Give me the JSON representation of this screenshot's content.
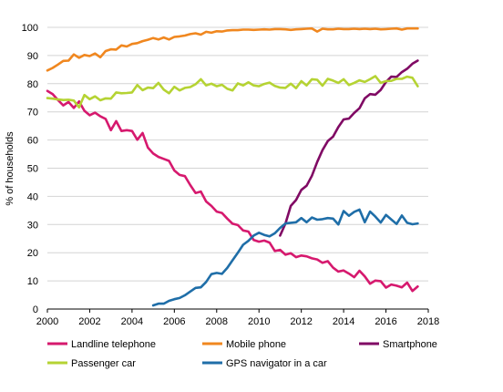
{
  "chart_data": {
    "type": "line",
    "ylabel": "% of households",
    "xlim": [
      2000,
      2018
    ],
    "ylim": [
      0,
      100
    ],
    "x_ticks": [
      "2000",
      "2002",
      "2004",
      "2006",
      "2008",
      "2010",
      "2012",
      "2014",
      "2016",
      "2018"
    ],
    "y_ticks": [
      "0",
      "10",
      "20",
      "30",
      "40",
      "50",
      "60",
      "70",
      "80",
      "90",
      "100"
    ],
    "grid": "horizontal",
    "legend_position": "bottom",
    "series": [
      {
        "name": "Landline telephone",
        "color": "#d6196e",
        "points": [
          [
            2000.0,
            77.4
          ],
          [
            2000.25,
            76.3
          ],
          [
            2000.5,
            74.2
          ],
          [
            2000.75,
            72.3
          ],
          [
            2001.0,
            73.5
          ],
          [
            2001.25,
            71.4
          ],
          [
            2001.5,
            73.7
          ],
          [
            2001.75,
            70.4
          ],
          [
            2002.0,
            68.8
          ],
          [
            2002.25,
            69.7
          ],
          [
            2002.5,
            68.4
          ],
          [
            2002.75,
            67.5
          ],
          [
            2003.0,
            63.5
          ],
          [
            2003.25,
            66.7
          ],
          [
            2003.5,
            63.2
          ],
          [
            2003.75,
            63.5
          ],
          [
            2004.0,
            63.2
          ],
          [
            2004.25,
            60.1
          ],
          [
            2004.5,
            62.5
          ],
          [
            2004.75,
            57.3
          ],
          [
            2005.0,
            55.2
          ],
          [
            2005.25,
            54.0
          ],
          [
            2005.5,
            53.3
          ],
          [
            2005.75,
            52.6
          ],
          [
            2006.0,
            49.2
          ],
          [
            2006.25,
            47.6
          ],
          [
            2006.5,
            47.2
          ],
          [
            2006.75,
            44.0
          ],
          [
            2007.0,
            41.2
          ],
          [
            2007.25,
            41.7
          ],
          [
            2007.5,
            38.2
          ],
          [
            2007.75,
            36.6
          ],
          [
            2008.0,
            34.6
          ],
          [
            2008.25,
            34.1
          ],
          [
            2008.5,
            32.1
          ],
          [
            2008.75,
            30.3
          ],
          [
            2009.0,
            29.8
          ],
          [
            2009.25,
            27.9
          ],
          [
            2009.5,
            27.5
          ],
          [
            2009.75,
            24.5
          ],
          [
            2010.0,
            23.9
          ],
          [
            2010.25,
            24.3
          ],
          [
            2010.5,
            23.6
          ],
          [
            2010.75,
            20.6
          ],
          [
            2011.0,
            21.0
          ],
          [
            2011.25,
            19.3
          ],
          [
            2011.5,
            19.8
          ],
          [
            2011.75,
            18.4
          ],
          [
            2012.0,
            19.0
          ],
          [
            2012.25,
            18.7
          ],
          [
            2012.5,
            18.0
          ],
          [
            2012.75,
            17.6
          ],
          [
            2013.0,
            16.4
          ],
          [
            2013.25,
            17.0
          ],
          [
            2013.5,
            14.7
          ],
          [
            2013.75,
            13.3
          ],
          [
            2014.0,
            13.7
          ],
          [
            2014.25,
            12.6
          ],
          [
            2014.5,
            11.3
          ],
          [
            2014.75,
            13.6
          ],
          [
            2015.0,
            11.6
          ],
          [
            2015.25,
            9.0
          ],
          [
            2015.5,
            10.1
          ],
          [
            2015.75,
            9.9
          ],
          [
            2016.0,
            7.6
          ],
          [
            2016.25,
            8.7
          ],
          [
            2016.5,
            8.3
          ],
          [
            2016.75,
            7.7
          ],
          [
            2017.0,
            9.4
          ],
          [
            2017.25,
            6.4
          ],
          [
            2017.5,
            8.0
          ]
        ]
      },
      {
        "name": "Mobile phone",
        "color": "#f0871f",
        "points": [
          [
            2000.0,
            84.7
          ],
          [
            2000.25,
            85.6
          ],
          [
            2000.5,
            86.8
          ],
          [
            2000.75,
            88.1
          ],
          [
            2001.0,
            88.2
          ],
          [
            2001.25,
            90.4
          ],
          [
            2001.5,
            89.2
          ],
          [
            2001.75,
            90.2
          ],
          [
            2002.0,
            89.8
          ],
          [
            2002.25,
            90.7
          ],
          [
            2002.5,
            89.4
          ],
          [
            2002.75,
            91.6
          ],
          [
            2003.0,
            92.2
          ],
          [
            2003.25,
            92.1
          ],
          [
            2003.5,
            93.6
          ],
          [
            2003.75,
            93.2
          ],
          [
            2004.0,
            94.1
          ],
          [
            2004.25,
            94.4
          ],
          [
            2004.5,
            95.1
          ],
          [
            2004.75,
            95.6
          ],
          [
            2005.0,
            96.2
          ],
          [
            2005.25,
            95.7
          ],
          [
            2005.5,
            96.4
          ],
          [
            2005.75,
            95.7
          ],
          [
            2006.0,
            96.6
          ],
          [
            2006.25,
            96.8
          ],
          [
            2006.5,
            97.1
          ],
          [
            2006.75,
            97.6
          ],
          [
            2007.0,
            97.9
          ],
          [
            2007.25,
            97.4
          ],
          [
            2007.5,
            98.4
          ],
          [
            2007.75,
            98.1
          ],
          [
            2008.0,
            98.6
          ],
          [
            2008.25,
            98.5
          ],
          [
            2008.5,
            98.9
          ],
          [
            2008.75,
            99.0
          ],
          [
            2009.0,
            99.0
          ],
          [
            2009.25,
            99.2
          ],
          [
            2009.5,
            99.2
          ],
          [
            2009.75,
            99.1
          ],
          [
            2010.0,
            99.2
          ],
          [
            2010.25,
            99.3
          ],
          [
            2010.5,
            99.2
          ],
          [
            2010.75,
            99.4
          ],
          [
            2011.0,
            99.4
          ],
          [
            2011.25,
            99.3
          ],
          [
            2011.5,
            99.1
          ],
          [
            2011.75,
            99.3
          ],
          [
            2012.0,
            99.4
          ],
          [
            2012.25,
            99.5
          ],
          [
            2012.5,
            99.6
          ],
          [
            2012.75,
            98.5
          ],
          [
            2013.0,
            99.5
          ],
          [
            2013.25,
            99.3
          ],
          [
            2013.5,
            99.3
          ],
          [
            2013.75,
            99.5
          ],
          [
            2014.0,
            99.4
          ],
          [
            2014.25,
            99.4
          ],
          [
            2014.5,
            99.5
          ],
          [
            2014.75,
            99.4
          ],
          [
            2015.0,
            99.5
          ],
          [
            2015.25,
            99.4
          ],
          [
            2015.5,
            99.5
          ],
          [
            2015.75,
            99.3
          ],
          [
            2016.0,
            99.4
          ],
          [
            2016.25,
            99.5
          ],
          [
            2016.5,
            99.6
          ],
          [
            2016.75,
            99.2
          ],
          [
            2017.0,
            99.6
          ],
          [
            2017.25,
            99.6
          ],
          [
            2017.5,
            99.6
          ]
        ]
      },
      {
        "name": "Smartphone",
        "color": "#800a64",
        "points": [
          [
            2011.0,
            26.1
          ],
          [
            2011.25,
            30.4
          ],
          [
            2011.5,
            36.6
          ],
          [
            2011.75,
            38.7
          ],
          [
            2012.0,
            42.3
          ],
          [
            2012.25,
            43.8
          ],
          [
            2012.5,
            47.3
          ],
          [
            2012.75,
            52.2
          ],
          [
            2013.0,
            56.4
          ],
          [
            2013.25,
            59.6
          ],
          [
            2013.5,
            61.2
          ],
          [
            2013.75,
            64.6
          ],
          [
            2014.0,
            67.3
          ],
          [
            2014.25,
            67.6
          ],
          [
            2014.5,
            69.6
          ],
          [
            2014.75,
            71.3
          ],
          [
            2015.0,
            74.8
          ],
          [
            2015.25,
            76.3
          ],
          [
            2015.5,
            76.1
          ],
          [
            2015.75,
            77.8
          ],
          [
            2016.0,
            80.6
          ],
          [
            2016.25,
            82.5
          ],
          [
            2016.5,
            82.4
          ],
          [
            2016.75,
            84.1
          ],
          [
            2017.0,
            85.3
          ],
          [
            2017.25,
            87.1
          ],
          [
            2017.5,
            88.2
          ]
        ]
      },
      {
        "name": "Passenger car",
        "color": "#b5d333",
        "points": [
          [
            2000.0,
            74.9
          ],
          [
            2000.25,
            74.7
          ],
          [
            2000.5,
            74.4
          ],
          [
            2000.75,
            74.2
          ],
          [
            2001.0,
            74.3
          ],
          [
            2001.25,
            74.0
          ],
          [
            2001.5,
            71.6
          ],
          [
            2001.75,
            76.0
          ],
          [
            2002.0,
            74.5
          ],
          [
            2002.25,
            75.5
          ],
          [
            2002.5,
            74.1
          ],
          [
            2002.75,
            74.8
          ],
          [
            2003.0,
            74.7
          ],
          [
            2003.25,
            76.9
          ],
          [
            2003.5,
            76.6
          ],
          [
            2003.75,
            76.7
          ],
          [
            2004.0,
            76.9
          ],
          [
            2004.25,
            79.5
          ],
          [
            2004.5,
            77.7
          ],
          [
            2004.75,
            78.6
          ],
          [
            2005.0,
            78.4
          ],
          [
            2005.25,
            80.3
          ],
          [
            2005.5,
            77.9
          ],
          [
            2005.75,
            76.6
          ],
          [
            2006.0,
            78.9
          ],
          [
            2006.25,
            77.6
          ],
          [
            2006.5,
            78.5
          ],
          [
            2006.75,
            78.8
          ],
          [
            2007.0,
            79.8
          ],
          [
            2007.25,
            81.6
          ],
          [
            2007.5,
            79.4
          ],
          [
            2007.75,
            80.0
          ],
          [
            2008.0,
            79.1
          ],
          [
            2008.25,
            79.6
          ],
          [
            2008.5,
            78.2
          ],
          [
            2008.75,
            77.6
          ],
          [
            2009.0,
            80.1
          ],
          [
            2009.25,
            79.4
          ],
          [
            2009.5,
            80.5
          ],
          [
            2009.75,
            79.4
          ],
          [
            2010.0,
            79.1
          ],
          [
            2010.25,
            79.9
          ],
          [
            2010.5,
            80.4
          ],
          [
            2010.75,
            79.2
          ],
          [
            2011.0,
            78.6
          ],
          [
            2011.25,
            78.5
          ],
          [
            2011.5,
            80.0
          ],
          [
            2011.75,
            78.4
          ],
          [
            2012.0,
            80.9
          ],
          [
            2012.25,
            79.4
          ],
          [
            2012.5,
            81.6
          ],
          [
            2012.75,
            81.4
          ],
          [
            2013.0,
            79.3
          ],
          [
            2013.25,
            81.7
          ],
          [
            2013.5,
            81.1
          ],
          [
            2013.75,
            80.3
          ],
          [
            2014.0,
            81.6
          ],
          [
            2014.25,
            79.5
          ],
          [
            2014.5,
            80.3
          ],
          [
            2014.75,
            81.2
          ],
          [
            2015.0,
            80.6
          ],
          [
            2015.25,
            81.6
          ],
          [
            2015.5,
            82.7
          ],
          [
            2015.75,
            80.3
          ],
          [
            2016.0,
            80.9
          ],
          [
            2016.25,
            81.0
          ],
          [
            2016.5,
            81.7
          ],
          [
            2016.75,
            81.7
          ],
          [
            2017.0,
            82.5
          ],
          [
            2017.25,
            82.1
          ],
          [
            2017.5,
            79.1
          ]
        ]
      },
      {
        "name": "GPS navigator in a car",
        "color": "#1f6ea8",
        "points": [
          [
            2005.0,
            1.3
          ],
          [
            2005.25,
            1.9
          ],
          [
            2005.5,
            1.9
          ],
          [
            2005.75,
            2.9
          ],
          [
            2006.0,
            3.5
          ],
          [
            2006.25,
            3.9
          ],
          [
            2006.5,
            4.9
          ],
          [
            2006.75,
            6.2
          ],
          [
            2007.0,
            7.5
          ],
          [
            2007.25,
            7.7
          ],
          [
            2007.5,
            9.6
          ],
          [
            2007.75,
            12.4
          ],
          [
            2008.0,
            12.8
          ],
          [
            2008.25,
            12.5
          ],
          [
            2008.5,
            14.6
          ],
          [
            2008.75,
            17.3
          ],
          [
            2009.0,
            20.0
          ],
          [
            2009.25,
            22.8
          ],
          [
            2009.5,
            24.2
          ],
          [
            2009.75,
            26.1
          ],
          [
            2010.0,
            27.1
          ],
          [
            2010.25,
            26.3
          ],
          [
            2010.5,
            25.8
          ],
          [
            2010.75,
            26.9
          ],
          [
            2011.0,
            28.8
          ],
          [
            2011.25,
            30.4
          ],
          [
            2011.5,
            30.6
          ],
          [
            2011.75,
            30.8
          ],
          [
            2012.0,
            32.3
          ],
          [
            2012.25,
            30.8
          ],
          [
            2012.5,
            32.5
          ],
          [
            2012.75,
            31.7
          ],
          [
            2013.0,
            31.9
          ],
          [
            2013.25,
            32.3
          ],
          [
            2013.5,
            32.1
          ],
          [
            2013.75,
            30.0
          ],
          [
            2014.0,
            34.8
          ],
          [
            2014.25,
            33.1
          ],
          [
            2014.5,
            34.5
          ],
          [
            2014.75,
            35.3
          ],
          [
            2015.0,
            30.8
          ],
          [
            2015.25,
            34.6
          ],
          [
            2015.5,
            32.8
          ],
          [
            2015.75,
            30.7
          ],
          [
            2016.0,
            33.4
          ],
          [
            2016.25,
            31.8
          ],
          [
            2016.5,
            30.2
          ],
          [
            2016.75,
            33.2
          ],
          [
            2017.0,
            30.6
          ],
          [
            2017.25,
            30.1
          ],
          [
            2017.5,
            30.4
          ]
        ]
      }
    ]
  }
}
